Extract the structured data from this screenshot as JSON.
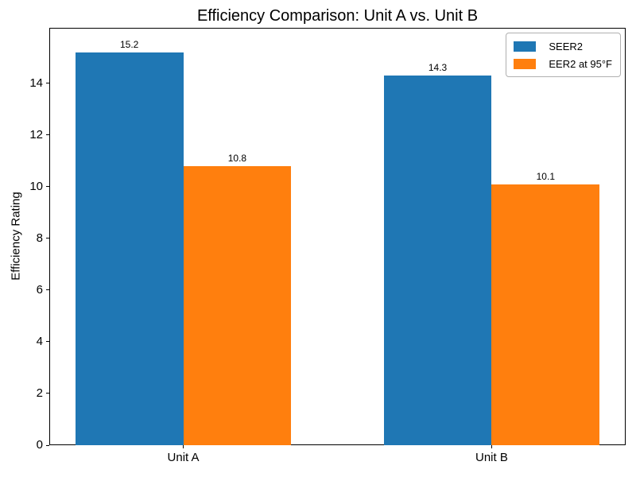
{
  "chart_data": {
    "type": "bar",
    "title": "Efficiency Comparison: Unit A vs. Unit B",
    "xlabel": "",
    "ylabel": "Efficiency Rating",
    "categories": [
      "Unit A",
      "Unit B"
    ],
    "series": [
      {
        "name": "SEER2",
        "color": "#1f77b4",
        "values": [
          15.2,
          14.3
        ],
        "value_labels": [
          "15.2",
          "14.3"
        ]
      },
      {
        "name": "EER2 at 95°F",
        "color": "#ff7f0e",
        "values": [
          10.8,
          10.1
        ],
        "value_labels": [
          "10.8",
          "10.1"
        ]
      }
    ],
    "yticks": [
      0,
      2,
      4,
      6,
      8,
      10,
      12,
      14
    ],
    "ylim": [
      0,
      16.15
    ],
    "grid": false,
    "legend_position": "upper right",
    "bar_width_units": 0.35,
    "spine_color": "#000000",
    "text_color": "#000000",
    "background_color": "#ffffff"
  }
}
